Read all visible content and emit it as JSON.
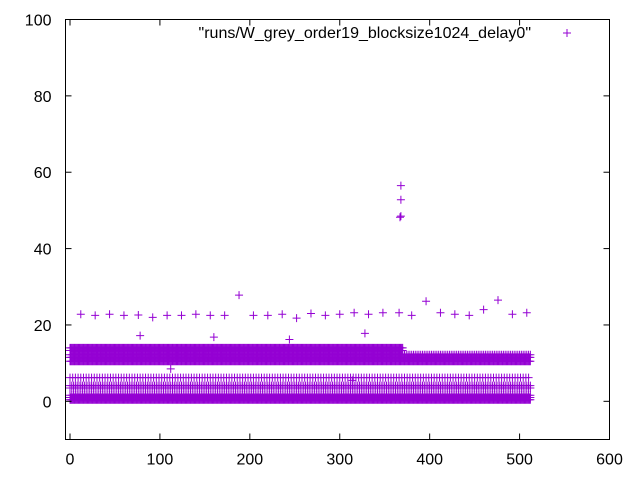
{
  "chart_data": {
    "type": "scatter",
    "title": "",
    "xlabel": "",
    "ylabel": "",
    "xlim": [
      -5,
      600
    ],
    "ylim": [
      -10,
      100
    ],
    "x_ticks": [
      0,
      100,
      200,
      300,
      400,
      500,
      600
    ],
    "y_ticks": [
      0,
      20,
      40,
      60,
      80,
      100
    ],
    "x_tick_labels": [
      "0",
      "100",
      "200",
      "300",
      "400",
      "500",
      "600"
    ],
    "y_tick_labels": [
      "0",
      "20",
      "40",
      "60",
      "80",
      "100"
    ],
    "grid": false,
    "legend_position": "top-right",
    "marker": "+",
    "color": "#9400d3",
    "series": [
      {
        "name": "\"runs/W_grey_order19_blocksize1024_delay0\"",
        "bands": [
          {
            "x_range": [
              0,
              512
            ],
            "y": 0.4,
            "step": 1
          },
          {
            "x_range": [
              0,
              512
            ],
            "y": 1.0,
            "step": 1
          },
          {
            "x_range": [
              0,
              512
            ],
            "y": 1.6,
            "step": 2
          },
          {
            "x_range": [
              0,
              512
            ],
            "y": 3.5,
            "step": 2
          },
          {
            "x_range": [
              0,
              512
            ],
            "y": 4.1,
            "step": 2
          },
          {
            "x_range": [
              0,
              512
            ],
            "y": 6.2,
            "step": 3
          },
          {
            "x_range": [
              0,
              512
            ],
            "y": 10.5,
            "step": 1
          },
          {
            "x_range": [
              0,
              512
            ],
            "y": 11.5,
            "step": 1
          },
          {
            "x_range": [
              0,
              512
            ],
            "y": 12.2,
            "step": 2
          },
          {
            "x_range": [
              0,
              370
            ],
            "y": 13.3,
            "step": 1
          },
          {
            "x_range": [
              0,
              370
            ],
            "y": 14.0,
            "step": 1
          }
        ],
        "outliers": [
          {
            "x": 12,
            "y": 22.8
          },
          {
            "x": 28,
            "y": 22.5
          },
          {
            "x": 44,
            "y": 22.8
          },
          {
            "x": 60,
            "y": 22.5
          },
          {
            "x": 76,
            "y": 22.6
          },
          {
            "x": 78,
            "y": 17.2
          },
          {
            "x": 92,
            "y": 22.0
          },
          {
            "x": 108,
            "y": 22.5
          },
          {
            "x": 112,
            "y": 8.5
          },
          {
            "x": 124,
            "y": 22.5
          },
          {
            "x": 140,
            "y": 22.8
          },
          {
            "x": 156,
            "y": 22.5
          },
          {
            "x": 160,
            "y": 16.8
          },
          {
            "x": 172,
            "y": 22.5
          },
          {
            "x": 188,
            "y": 27.8
          },
          {
            "x": 204,
            "y": 22.5
          },
          {
            "x": 220,
            "y": 22.5
          },
          {
            "x": 236,
            "y": 22.8
          },
          {
            "x": 244,
            "y": 16.2
          },
          {
            "x": 252,
            "y": 21.8
          },
          {
            "x": 268,
            "y": 23.0
          },
          {
            "x": 284,
            "y": 22.5
          },
          {
            "x": 300,
            "y": 22.8
          },
          {
            "x": 314,
            "y": 5.5
          },
          {
            "x": 316,
            "y": 23.2
          },
          {
            "x": 328,
            "y": 17.8
          },
          {
            "x": 332,
            "y": 22.8
          },
          {
            "x": 348,
            "y": 23.2
          },
          {
            "x": 366,
            "y": 23.2
          },
          {
            "x": 367,
            "y": 48.2
          },
          {
            "x": 368,
            "y": 48.5
          },
          {
            "x": 368,
            "y": 52.8
          },
          {
            "x": 368,
            "y": 56.5
          },
          {
            "x": 380,
            "y": 22.5
          },
          {
            "x": 396,
            "y": 26.2
          },
          {
            "x": 412,
            "y": 23.2
          },
          {
            "x": 428,
            "y": 22.8
          },
          {
            "x": 444,
            "y": 22.5
          },
          {
            "x": 460,
            "y": 24.0
          },
          {
            "x": 476,
            "y": 26.5
          },
          {
            "x": 492,
            "y": 22.8
          },
          {
            "x": 508,
            "y": 23.2
          }
        ]
      }
    ]
  }
}
